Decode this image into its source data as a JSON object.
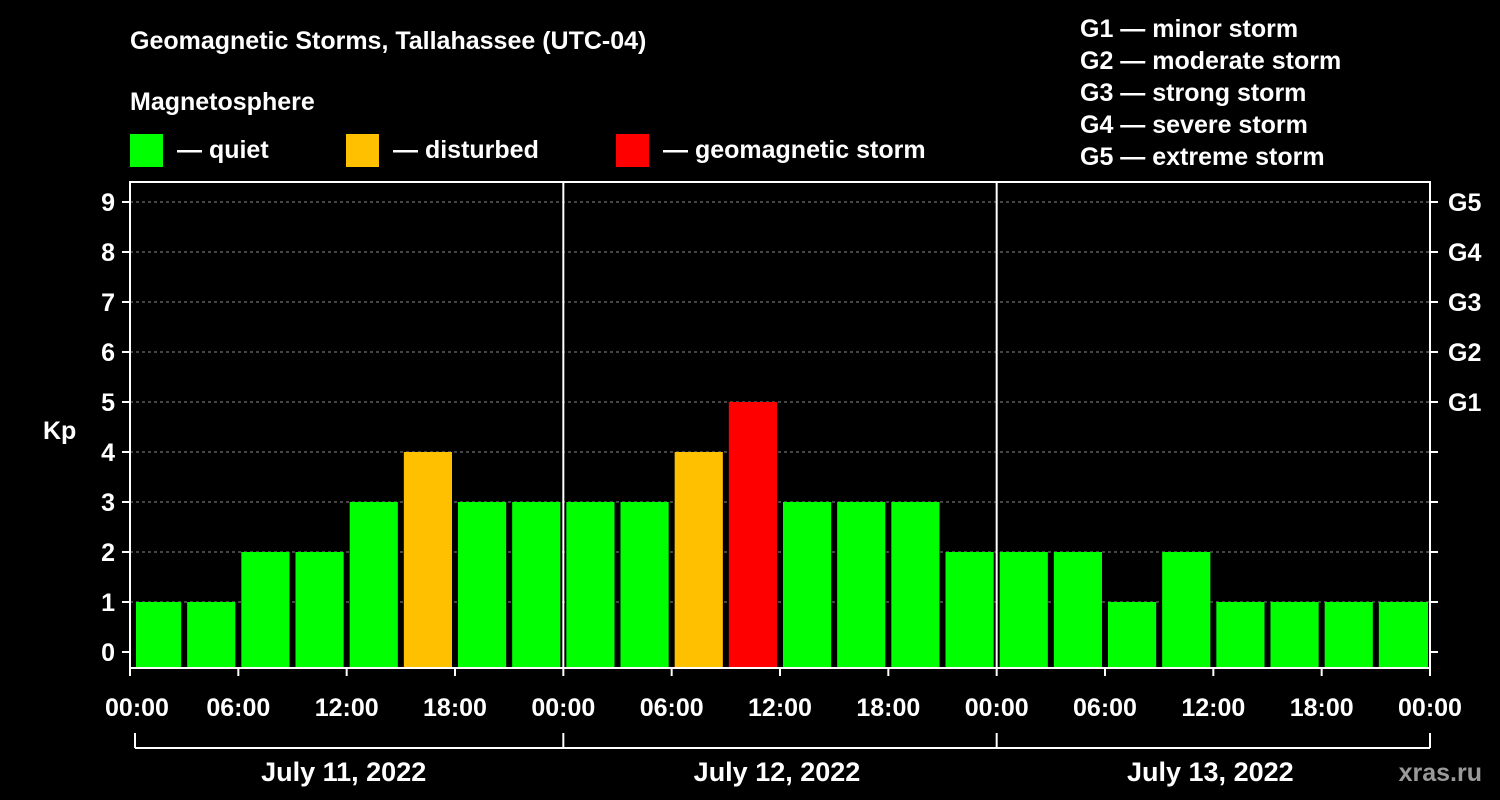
{
  "chart_data": {
    "type": "bar",
    "title": "Geomagnetic Storms, Tallahassee (UTC-04)",
    "subtitle": "Magnetosphere",
    "ylabel": "Kp",
    "ylim": [
      0,
      9
    ],
    "yticks": [
      "0",
      "1",
      "2",
      "3",
      "4",
      "5",
      "6",
      "7",
      "8",
      "9"
    ],
    "right_ticks": [
      {
        "kp": 5,
        "label": "G1"
      },
      {
        "kp": 6,
        "label": "G2"
      },
      {
        "kp": 7,
        "label": "G3"
      },
      {
        "kp": 8,
        "label": "G4"
      },
      {
        "kp": 9,
        "label": "G5"
      }
    ],
    "legend": [
      {
        "key": "quiet",
        "label": "— quiet",
        "color": "#00ff00"
      },
      {
        "key": "disturbed",
        "label": "— disturbed",
        "color": "#ffc000"
      },
      {
        "key": "storm",
        "label": "— geomagnetic storm",
        "color": "#ff0000"
      }
    ],
    "storm_scale": [
      "G1 — minor storm",
      "G2 — moderate storm",
      "G3 — strong storm",
      "G4 — severe storm",
      "G5 — extreme storm"
    ],
    "x_tick_labels": [
      "00:00",
      "06:00",
      "12:00",
      "18:00",
      "00:00",
      "06:00",
      "12:00",
      "18:00",
      "00:00",
      "06:00",
      "12:00",
      "18:00",
      "00:00"
    ],
    "days": [
      "July 11, 2022",
      "July 12, 2022",
      "July 13, 2022"
    ],
    "interval_hours": 3,
    "values": [
      1,
      1,
      2,
      2,
      3,
      4,
      3,
      3,
      3,
      3,
      4,
      5,
      3,
      3,
      3,
      2,
      2,
      2,
      1,
      2,
      1,
      1,
      1,
      1
    ],
    "last_value": 1,
    "grid": "dashed horizontal",
    "background": "#000000",
    "axis_color": "#ffffff"
  },
  "watermark": "xras.ru"
}
